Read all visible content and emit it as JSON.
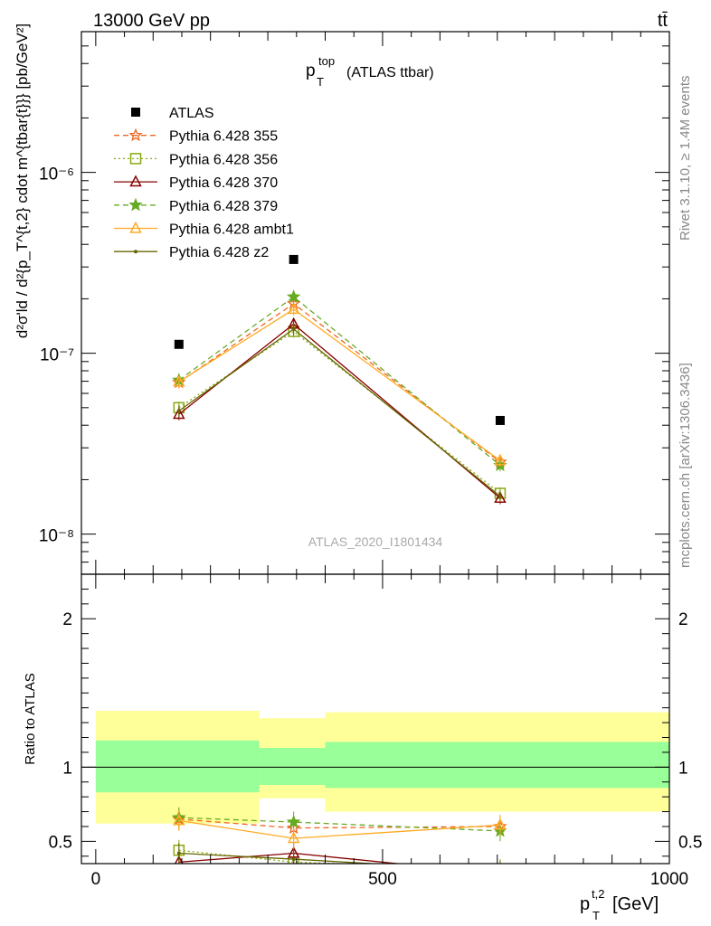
{
  "header": {
    "left": "13000 GeV pp",
    "right": "tt̄"
  },
  "side_labels": {
    "rivet": "Rivet 3.1.10, ≥ 1.4M events",
    "mcplots": "mcplots.cern.ch [arXiv:1306.3436]"
  },
  "chart_data": [
    {
      "type": "line",
      "panel": "main",
      "title_main": "p",
      "title_sup": "top",
      "title_sub": "T",
      "title_suffix": "(ATLAS ttbar)",
      "watermark": "ATLAS_2020_I1801434",
      "ylabel": "d²σ'ld / d²{p_T^{t,2} cdot m^{tbar{t}}} [pb/GeV²]",
      "yscale": "log",
      "ylim": [
        6e-09,
        6e-06
      ],
      "xlim": [
        -25,
        1000
      ],
      "ytick_labels": [
        "10⁻⁶",
        "10⁻⁷",
        "10⁻⁸"
      ],
      "x": [
        145,
        345,
        705
      ],
      "series": [
        {
          "name": "ATLAS",
          "color": "#000000",
          "marker": "square-filled",
          "dash": "none",
          "values": [
            1.12e-07,
            3.3e-07,
            4.25e-08
          ]
        },
        {
          "name": "Pythia 6.428 355",
          "color": "#ee6622",
          "marker": "star-open",
          "dash": "dashed",
          "values": [
            6.9e-08,
            1.88e-07,
            2.5e-08
          ]
        },
        {
          "name": "Pythia 6.428 356",
          "color": "#88aa11",
          "marker": "square-open",
          "dash": "dotted",
          "values": [
            5e-08,
            1.32e-07,
            1.68e-08
          ]
        },
        {
          "name": "Pythia 6.428 370",
          "color": "#880000",
          "marker": "triangle-open",
          "dash": "solid",
          "values": [
            4.6e-08,
            1.45e-07,
            1.58e-08
          ]
        },
        {
          "name": "Pythia 6.428 379",
          "color": "#66aa22",
          "marker": "star-filled",
          "dash": "dashed",
          "values": [
            7.1e-08,
            2.05e-07,
            2.4e-08
          ]
        },
        {
          "name": "Pythia 6.428 ambt1",
          "color": "#ffaa22",
          "marker": "triangle-open",
          "dash": "solid",
          "values": [
            6.95e-08,
            1.75e-07,
            2.55e-08
          ]
        },
        {
          "name": "Pythia 6.428 z2",
          "color": "#666600",
          "marker": "dot",
          "dash": "solid",
          "values": [
            4.8e-08,
            1.36e-07,
            1.62e-08
          ]
        }
      ]
    },
    {
      "type": "line",
      "panel": "ratio",
      "ylabel": "Ratio to ATLAS",
      "xlabel": "p_T^{t,2} [GeV]",
      "xlabel_main": "p",
      "xlabel_sup": "t,2",
      "xlabel_sub": "T",
      "xlabel_unit": "[GeV]",
      "ylim": [
        0.35,
        2.3
      ],
      "xlim": [
        -25,
        1000
      ],
      "xticks": [
        0,
        500,
        1000
      ],
      "xtick_labels": [
        "0",
        "500",
        "1000"
      ],
      "yticks": [
        0.5,
        1,
        2
      ],
      "ytick_labels": [
        "0.5",
        "1",
        "2"
      ],
      "bands": [
        {
          "x0": 0,
          "x1": 285,
          "stat_lo": 0.83,
          "stat_hi": 1.18,
          "tot_lo": 0.62,
          "tot_hi": 1.38
        },
        {
          "x0": 285,
          "x1": 400,
          "stat_lo": 0.88,
          "stat_hi": 1.13,
          "tot_lo": 0.79,
          "tot_hi": 1.33
        },
        {
          "x0": 400,
          "x1": 1000,
          "stat_lo": 0.86,
          "stat_hi": 1.17,
          "tot_lo": 0.7,
          "tot_hi": 1.37
        }
      ],
      "x": [
        145,
        345,
        705
      ],
      "series": [
        {
          "name": "Pythia 6.428 355",
          "color": "#ee6622",
          "marker": "star-open",
          "dash": "dashed",
          "values": [
            0.65,
            0.59,
            0.6
          ]
        },
        {
          "name": "Pythia 6.428 356",
          "color": "#88aa11",
          "marker": "square-open",
          "dash": "dotted",
          "values": [
            0.44,
            0.36,
            0.31
          ]
        },
        {
          "name": "Pythia 6.428 370",
          "color": "#880000",
          "marker": "triangle-open",
          "dash": "solid",
          "values": [
            0.36,
            0.42,
            0.28
          ]
        },
        {
          "name": "Pythia 6.428 379",
          "color": "#66aa22",
          "marker": "star-filled",
          "dash": "dashed",
          "values": [
            0.66,
            0.63,
            0.57
          ]
        },
        {
          "name": "Pythia 6.428 ambt1",
          "color": "#ffaa22",
          "marker": "triangle-open",
          "dash": "solid",
          "values": [
            0.64,
            0.52,
            0.61
          ]
        },
        {
          "name": "Pythia 6.428 z2",
          "color": "#666600",
          "marker": "dot",
          "dash": "solid",
          "values": [
            0.42,
            0.38,
            0.3
          ]
        }
      ]
    }
  ]
}
